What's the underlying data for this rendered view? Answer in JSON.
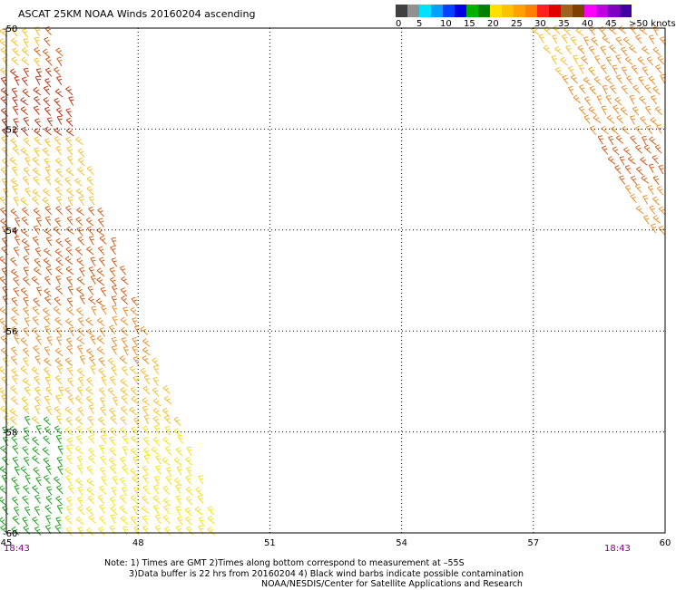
{
  "title": "ASCAT 25KM NOAA Winds 20160204 ascending",
  "legend": {
    "labels": [
      "0",
      "5",
      "10",
      "15",
      "20",
      "25",
      "30",
      "35",
      "40",
      "45",
      ">50 knots"
    ],
    "colors": [
      "#404040",
      "#909090",
      "#00e0ff",
      "#00a0ff",
      "#0040ff",
      "#0000e0",
      "#00b000",
      "#008000",
      "#ffe000",
      "#ffc000",
      "#ffa000",
      "#ff8000",
      "#ff2020",
      "#e00000",
      "#a06020",
      "#804000",
      "#ff00ff",
      "#c000e0",
      "#8000c0",
      "#4000a0"
    ]
  },
  "axes": {
    "x_labels": [
      "45",
      "48",
      "51",
      "54",
      "57",
      "60"
    ],
    "y_labels": [
      "-50",
      "-52",
      "-54",
      "-56",
      "-58",
      "-60"
    ]
  },
  "times": {
    "left": "18:43",
    "right": "18:43"
  },
  "notes": [
    "Note: 1) Times are GMT 2)Times along bottom correspond to measurement at –55S",
    "3)Data buffer is 22 hrs from 20160204 4) Black wind barbs indicate possible contamination",
    "NOAA/NESDIS/Center for Satellite Applications and Research"
  ],
  "wind_colors": {
    "green": "#22a022",
    "yellow": "#f5e020",
    "gold": "#f2c030",
    "orange": "#e89030",
    "dark_orange": "#d06020",
    "red_brown": "#b83818"
  }
}
